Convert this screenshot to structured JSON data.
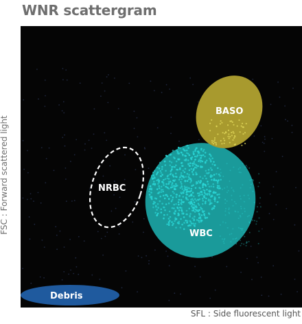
{
  "title": "WNR scattergram",
  "axes": {
    "y_label": "FSC : Forward scattered light",
    "x_label": "SFL : Side fluorescent light"
  },
  "regions": [
    {
      "name": "BASO",
      "label": "BASO",
      "color": "#a89a2e",
      "style": "filled"
    },
    {
      "name": "NRBC",
      "label": "NRBC",
      "color": "#ffffff",
      "style": "dashed-outline"
    },
    {
      "name": "WBC",
      "label": "WBC",
      "color": "#1a9a9a",
      "style": "filled"
    },
    {
      "name": "Debris",
      "label": "Debris",
      "color": "#1f5a9e",
      "style": "filled"
    }
  ],
  "colors": {
    "background": "#050505",
    "wbc_dots": "#2ad6d6",
    "baso_dots": "#e8e060",
    "noise_dots": "#3a4a7a"
  }
}
